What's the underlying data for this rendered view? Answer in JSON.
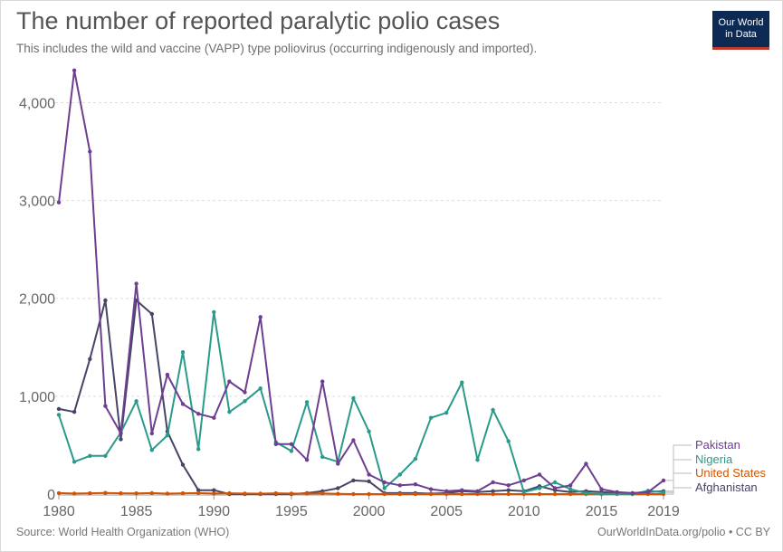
{
  "header": {
    "title": "The number of reported paralytic polio cases",
    "subtitle": "This includes the wild and vaccine (VAPP) type poliovirus (occurring indigenously and imported).",
    "logo_line1": "Our World",
    "logo_line2": "in Data"
  },
  "footer": {
    "source": "Source: World Health Organization (WHO)",
    "credit": "OurWorldInData.org/polio • CC BY"
  },
  "chart_data": {
    "type": "line",
    "title": "The number of reported paralytic polio cases",
    "xlim": [
      1980,
      2019
    ],
    "ylim": [
      0,
      4300
    ],
    "x_ticks": [
      1980,
      1985,
      1990,
      1995,
      2000,
      2005,
      2010,
      2015,
      2019
    ],
    "y_ticks": [
      0,
      1000,
      2000,
      3000,
      4000
    ],
    "y_tick_labels": [
      "0",
      "1,000",
      "2,000",
      "3,000",
      "4,000"
    ],
    "grid": true,
    "legend_position": "right",
    "x": [
      1980,
      1981,
      1982,
      1983,
      1984,
      1985,
      1986,
      1987,
      1988,
      1989,
      1990,
      1991,
      1992,
      1993,
      1994,
      1995,
      1996,
      1997,
      1998,
      1999,
      2000,
      2001,
      2002,
      2003,
      2004,
      2005,
      2006,
      2007,
      2008,
      2009,
      2010,
      2011,
      2012,
      2013,
      2014,
      2015,
      2016,
      2017,
      2018,
      2019
    ],
    "series": [
      {
        "name": "Pakistan",
        "color": "#6d3e91",
        "values": [
          2980,
          4330,
          3500,
          900,
          620,
          2150,
          620,
          1220,
          920,
          820,
          780,
          1150,
          1040,
          1810,
          510,
          510,
          350,
          1150,
          310,
          550,
          200,
          120,
          90,
          100,
          50,
          30,
          40,
          30,
          120,
          90,
          140,
          200,
          60,
          90,
          310,
          50,
          20,
          10,
          20,
          140
        ]
      },
      {
        "name": "Nigeria",
        "color": "#2a9a8a",
        "values": [
          810,
          330,
          390,
          390,
          630,
          950,
          450,
          600,
          1450,
          460,
          1860,
          840,
          950,
          1080,
          530,
          440,
          940,
          380,
          330,
          980,
          640,
          60,
          200,
          360,
          780,
          830,
          1140,
          350,
          860,
          540,
          20,
          60,
          120,
          50,
          10,
          0,
          4,
          0,
          34,
          18
        ]
      },
      {
        "name": "United States",
        "color": "#d35400",
        "values": [
          10,
          6,
          8,
          12,
          8,
          7,
          10,
          5,
          8,
          10,
          6,
          8,
          6,
          5,
          8,
          6,
          5,
          7,
          3,
          0,
          0,
          0,
          0,
          0,
          0,
          1,
          0,
          0,
          0,
          0,
          0,
          0,
          0,
          0,
          0,
          0,
          0,
          0,
          0,
          0
        ]
      },
      {
        "name": "Afghanistan",
        "color": "#454566",
        "values": [
          870,
          840,
          1380,
          1980,
          560,
          1980,
          1840,
          640,
          300,
          40,
          40,
          0,
          0,
          0,
          0,
          0,
          10,
          30,
          60,
          140,
          130,
          10,
          10,
          10,
          5,
          10,
          30,
          20,
          30,
          40,
          30,
          80,
          40,
          20,
          30,
          20,
          10,
          10,
          20,
          30
        ]
      }
    ]
  }
}
